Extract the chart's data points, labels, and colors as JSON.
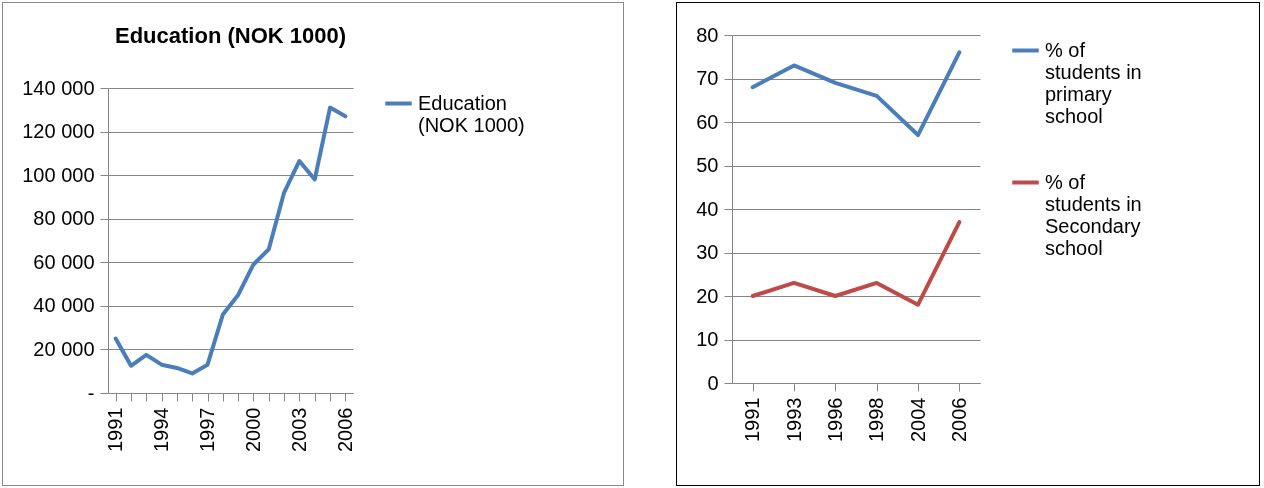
{
  "chart_data": [
    {
      "type": "line",
      "title": "Education (NOK 1000)",
      "categories": [
        "1991",
        null,
        null,
        "1994",
        null,
        null,
        "1997",
        null,
        null,
        "2000",
        null,
        null,
        "2003",
        null,
        null,
        "2006"
      ],
      "series": [
        {
          "name": "Education (NOK 1000)",
          "color": "#4a7ebb",
          "values": [
            25000,
            12500,
            17500,
            13000,
            11500,
            9000,
            13000,
            36000,
            45000,
            59000,
            66000,
            92000,
            106500,
            98000,
            131000,
            127000
          ]
        }
      ],
      "ylim": [
        0,
        140000
      ],
      "yticks": [
        {
          "value": 0,
          "label": "-"
        },
        {
          "value": 20000,
          "label": "20 000"
        },
        {
          "value": 40000,
          "label": "40 000"
        },
        {
          "value": 60000,
          "label": "60 000"
        },
        {
          "value": 80000,
          "label": "80 000"
        },
        {
          "value": 100000,
          "label": "100 000"
        },
        {
          "value": 120000,
          "label": "120 000"
        },
        {
          "value": 140000,
          "label": "140 000"
        }
      ],
      "grid": "y",
      "legend": "right"
    },
    {
      "type": "line",
      "categories": [
        "1991",
        "1993",
        "1996",
        "1998",
        "2004",
        "2006"
      ],
      "series": [
        {
          "name": "% of students in primary school",
          "color": "#4a7ebb",
          "values": [
            68,
            73,
            69,
            66,
            57,
            76
          ]
        },
        {
          "name": "% of students in Secondary school",
          "color": "#be4b48",
          "values": [
            20,
            23,
            20,
            23,
            18,
            37
          ]
        }
      ],
      "ylim": [
        0,
        80
      ],
      "yticks": [
        0,
        10,
        20,
        30,
        40,
        50,
        60,
        70,
        80
      ],
      "grid": "y",
      "legend": "right"
    }
  ]
}
